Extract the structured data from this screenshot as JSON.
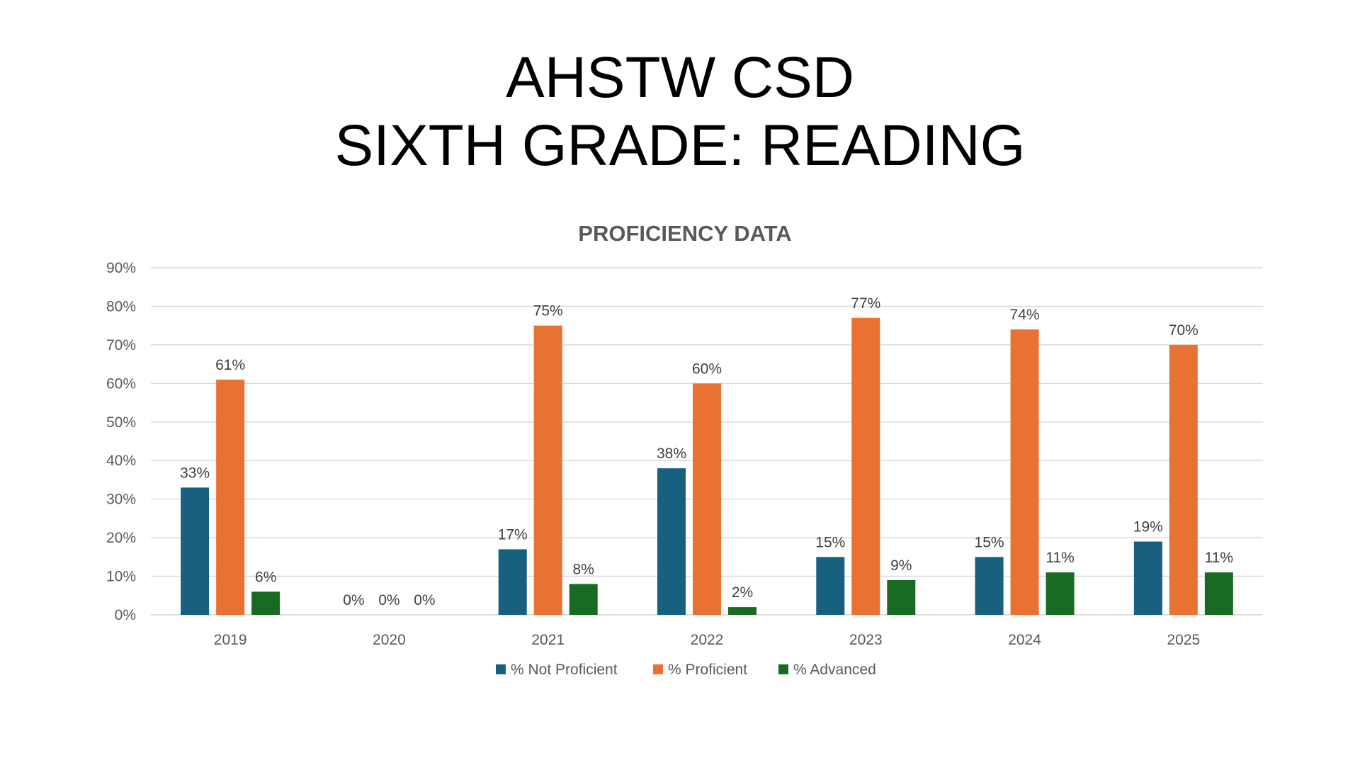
{
  "slide": {
    "title_line1": "AHSTW CSD",
    "title_line2": "SIXTH GRADE: READING"
  },
  "chart_data": {
    "type": "bar",
    "title": "PROFICIENCY DATA",
    "xlabel": "",
    "ylabel": "",
    "categories": [
      "2019",
      "2020",
      "2021",
      "2022",
      "2023",
      "2024",
      "2025"
    ],
    "series": [
      {
        "name": "% Not Proficient",
        "color": "#17607f",
        "values": [
          33,
          0,
          17,
          38,
          15,
          15,
          19
        ]
      },
      {
        "name": "% Proficient",
        "color": "#e97132",
        "values": [
          61,
          0,
          75,
          60,
          77,
          74,
          70
        ]
      },
      {
        "name": "% Advanced",
        "color": "#196b24",
        "values": [
          6,
          0,
          8,
          2,
          9,
          11,
          11
        ]
      }
    ],
    "ylim": [
      0,
      90
    ],
    "y_ticks": [
      0,
      10,
      20,
      30,
      40,
      50,
      60,
      70,
      80,
      90
    ],
    "value_format": "percent",
    "grid": true,
    "legend": "bottom-center",
    "data_labels": true
  }
}
